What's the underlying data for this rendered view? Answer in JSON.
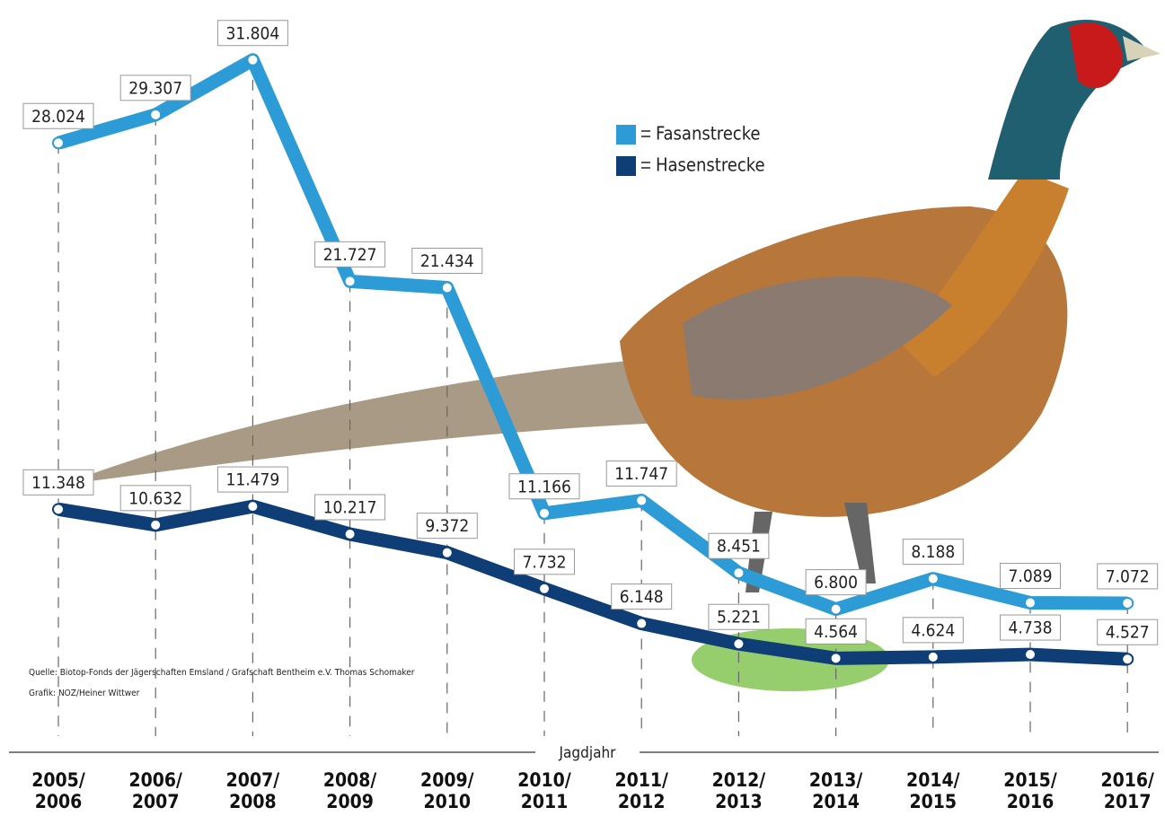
{
  "chart_data": {
    "type": "line",
    "x_label": "Jagdjahr",
    "categories": [
      "2005/ 2006",
      "2006/ 2007",
      "2007/ 2008",
      "2008/ 2009",
      "2009/ 2010",
      "2010/ 2011",
      "2011/ 2012",
      "2012/ 2013",
      "2013/ 2014",
      "2014/ 2015",
      "2015/ 2016",
      "2016/ 2017"
    ],
    "series": [
      {
        "name": "Fasanstrecke",
        "color": "#2d9cd6",
        "values": [
          28024,
          29307,
          31804,
          21727,
          21434,
          11166,
          11747,
          8451,
          6800,
          8188,
          7089,
          7072
        ],
        "value_labels": [
          "28.024",
          "29.307",
          "31.804",
          "21.727",
          "21.434",
          "11.166",
          "11.747",
          "8.451",
          "6.800",
          "8.188",
          "7.089",
          "7.072"
        ]
      },
      {
        "name": "Hasenstrecke",
        "color": "#0f3d75",
        "values": [
          11348,
          10632,
          11479,
          10217,
          9372,
          7732,
          6148,
          5221,
          4564,
          4624,
          4738,
          4527
        ],
        "value_labels": [
          "11.348",
          "10.632",
          "11.479",
          "10.217",
          "9.372",
          "7.732",
          "6.148",
          "5.221",
          "4.564",
          "4.624",
          "4.738",
          "4.527"
        ]
      }
    ],
    "source": "Quelle: Biotop-Fonds der Jägerschaften Emsland / Grafschaft Bentheim e.V. Thomas Schomaker",
    "credit": "Grafik: NOZ/Heiner Wittwer"
  }
}
